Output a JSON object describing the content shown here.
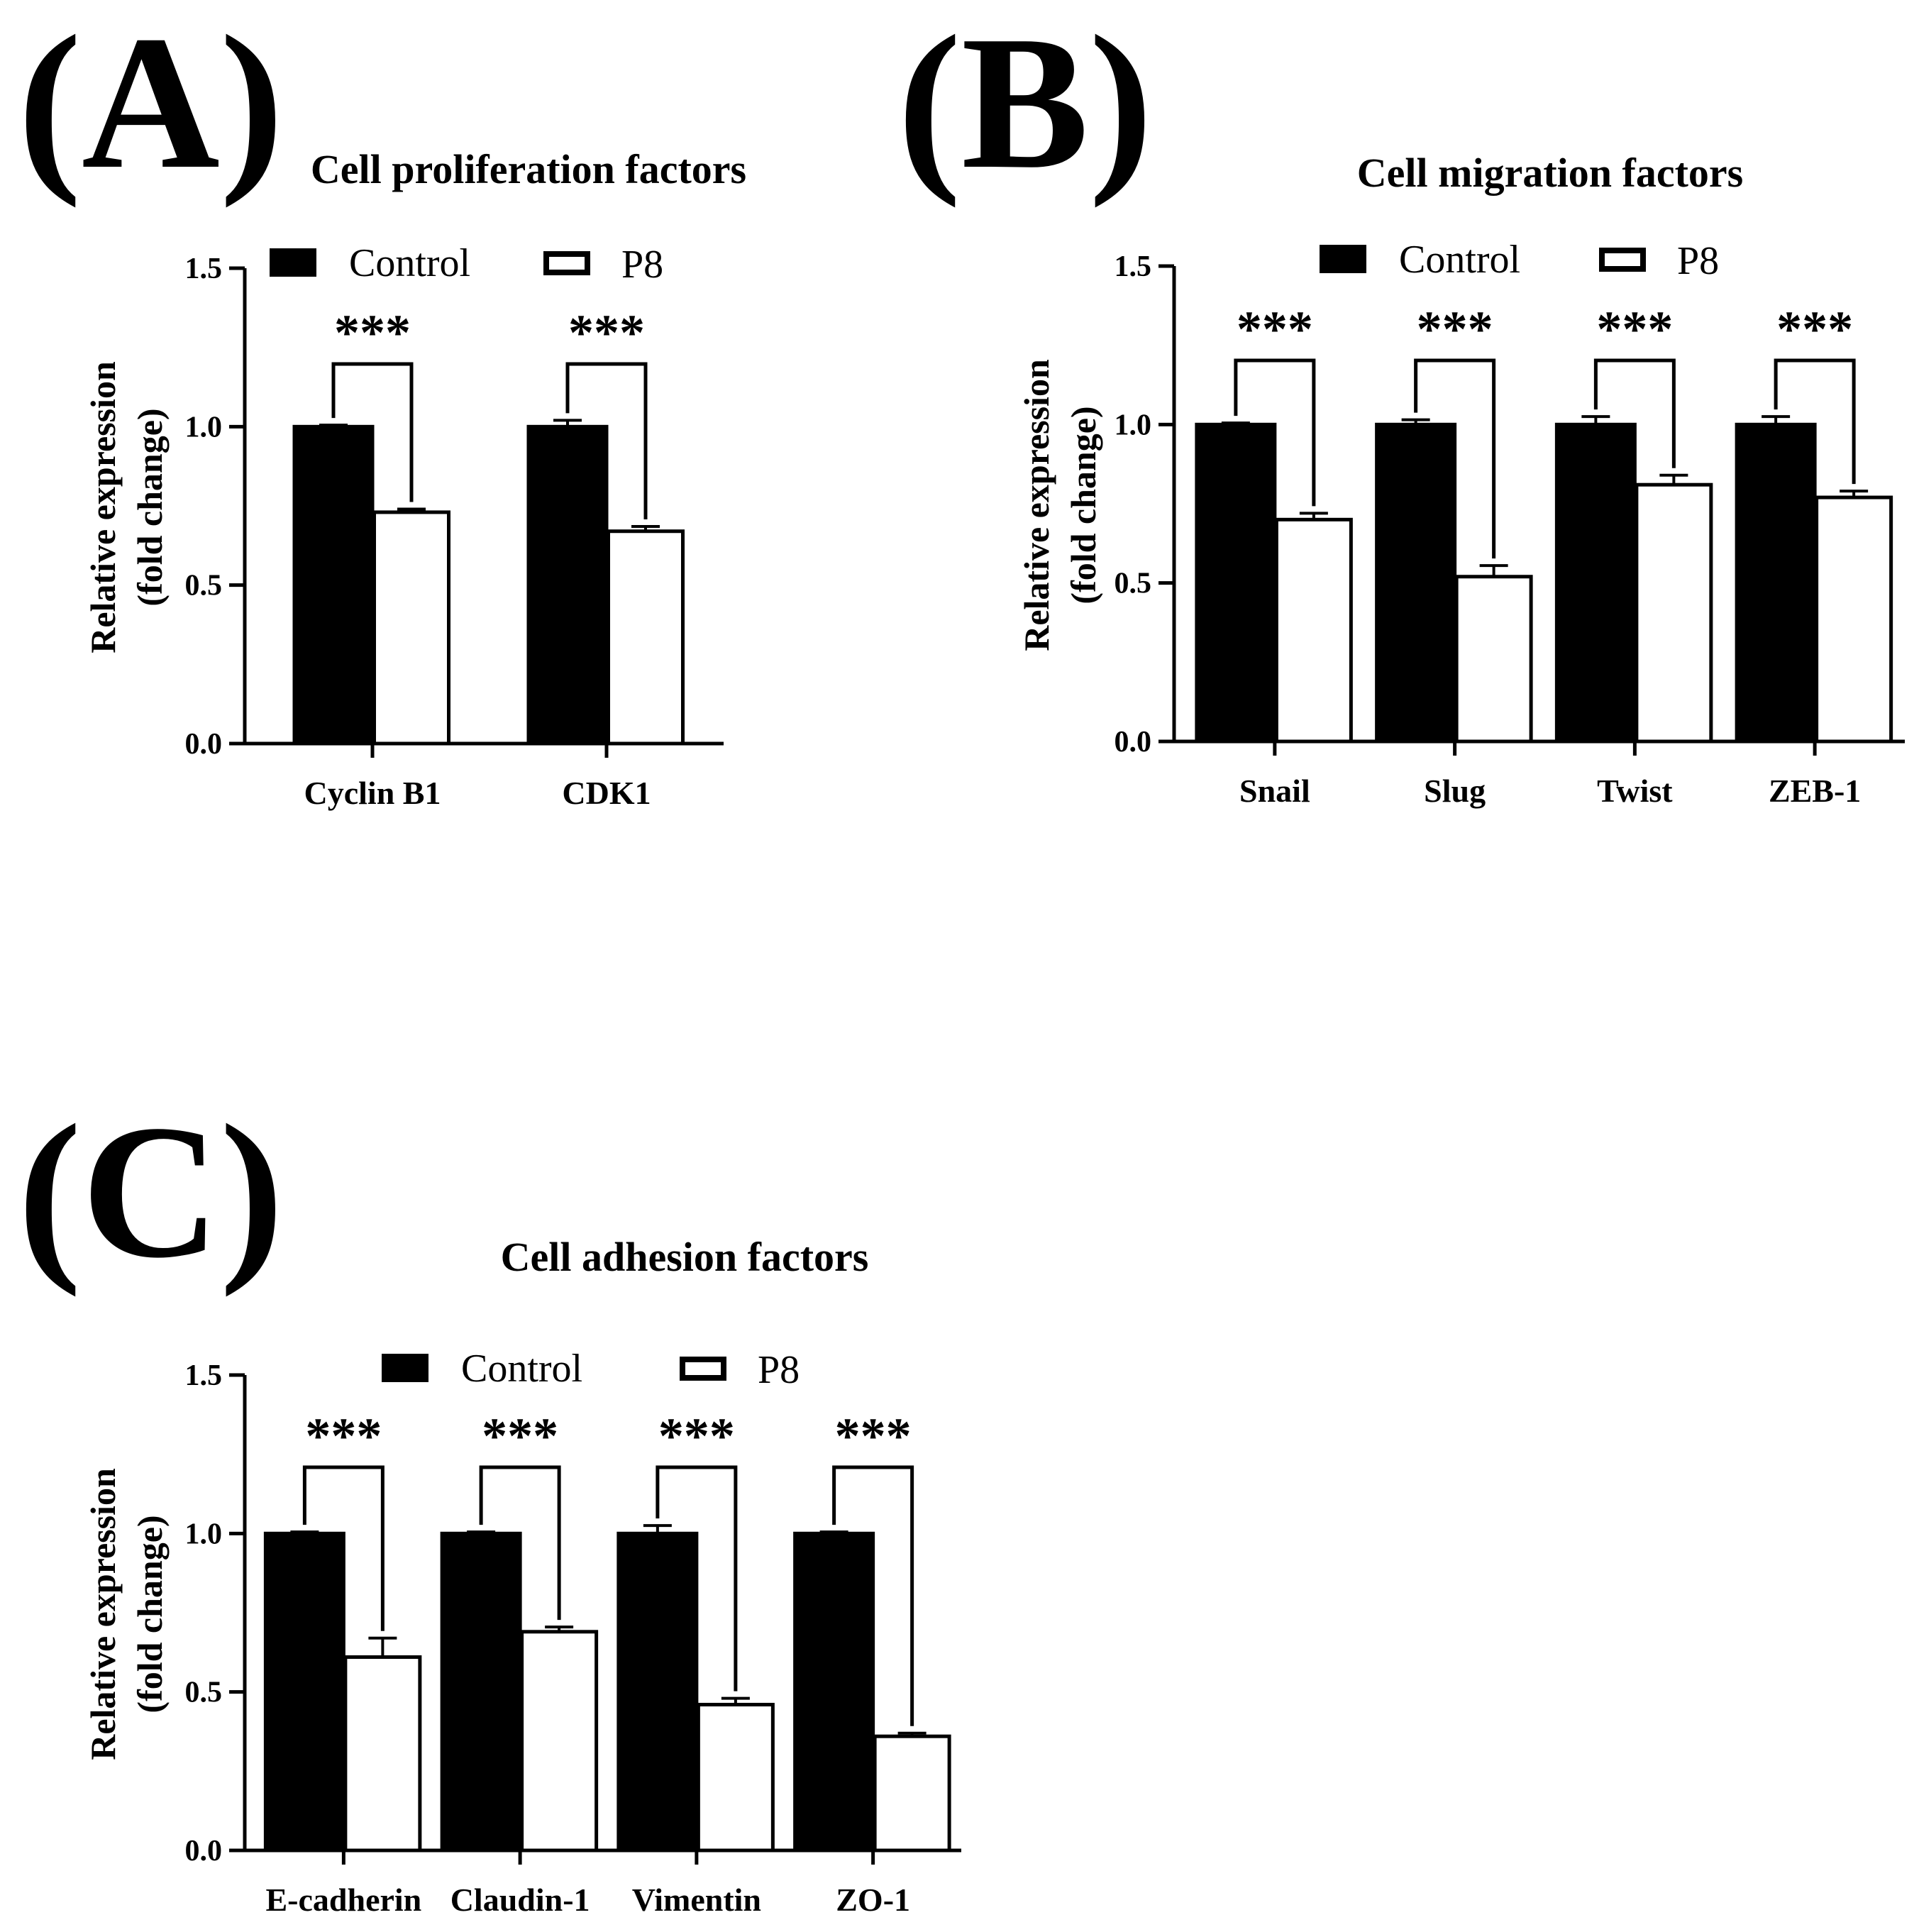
{
  "figure": {
    "panels": [
      "(A)",
      "(B)",
      "(C)"
    ]
  },
  "chart_data": [
    {
      "type": "bar",
      "panel": "(A)",
      "title": "Cell proliferation  factors",
      "xlabel": "",
      "ylabel": [
        "Relative expression",
        "(fold change)"
      ],
      "ylim": [
        0,
        1.5
      ],
      "yticks": [
        "0.0",
        "0.5",
        "1.0",
        "1.5"
      ],
      "categories": [
        "Cyclin B1",
        "CDK1"
      ],
      "series": [
        {
          "name": "Control",
          "color": "#000000",
          "values": [
            1.0,
            1.0
          ],
          "errors": [
            0.005,
            0.02
          ]
        },
        {
          "name": "P8",
          "color": "#ffffff",
          "values": [
            0.73,
            0.67
          ],
          "errors": [
            0.01,
            0.015
          ]
        }
      ],
      "significance": [
        "***",
        "***"
      ],
      "legend": "top"
    },
    {
      "type": "bar",
      "panel": "(B)",
      "title": "Cell migration  factors",
      "xlabel": "",
      "ylabel": [
        "Relative expression",
        "(fold change)"
      ],
      "ylim": [
        0,
        1.5
      ],
      "yticks": [
        "0.0",
        "0.5",
        "1.0",
        "1.5"
      ],
      "categories": [
        "Snail",
        "Slug",
        "Twist",
        "ZEB-1"
      ],
      "series": [
        {
          "name": "Control",
          "color": "#000000",
          "values": [
            1.0,
            1.0,
            1.0,
            1.0
          ],
          "errors": [
            0.005,
            0.015,
            0.025,
            0.025
          ]
        },
        {
          "name": "P8",
          "color": "#ffffff",
          "values": [
            0.7,
            0.52,
            0.81,
            0.77
          ],
          "errors": [
            0.02,
            0.035,
            0.03,
            0.02
          ]
        }
      ],
      "significance": [
        "***",
        "***",
        "***",
        "***"
      ],
      "legend": "top"
    },
    {
      "type": "bar",
      "panel": "(C)",
      "title": "Cell adhesion  factors",
      "xlabel": "",
      "ylabel": [
        "Relative expression",
        "(fold change)"
      ],
      "ylim": [
        0,
        1.5
      ],
      "yticks": [
        "0.0",
        "0.5",
        "1.0",
        "1.5"
      ],
      "categories": [
        "E-cadherin",
        "Claudin-1",
        "Vimentin",
        "ZO-1"
      ],
      "series": [
        {
          "name": "Control",
          "color": "#000000",
          "values": [
            1.0,
            1.0,
            1.0,
            1.0
          ],
          "errors": [
            0.005,
            0.005,
            0.025,
            0.005
          ]
        },
        {
          "name": "P8",
          "color": "#ffffff",
          "values": [
            0.61,
            0.69,
            0.46,
            0.36
          ],
          "errors": [
            0.06,
            0.015,
            0.02,
            0.01
          ]
        }
      ],
      "significance": [
        "***",
        "***",
        "***",
        "***"
      ],
      "legend": "top"
    }
  ]
}
